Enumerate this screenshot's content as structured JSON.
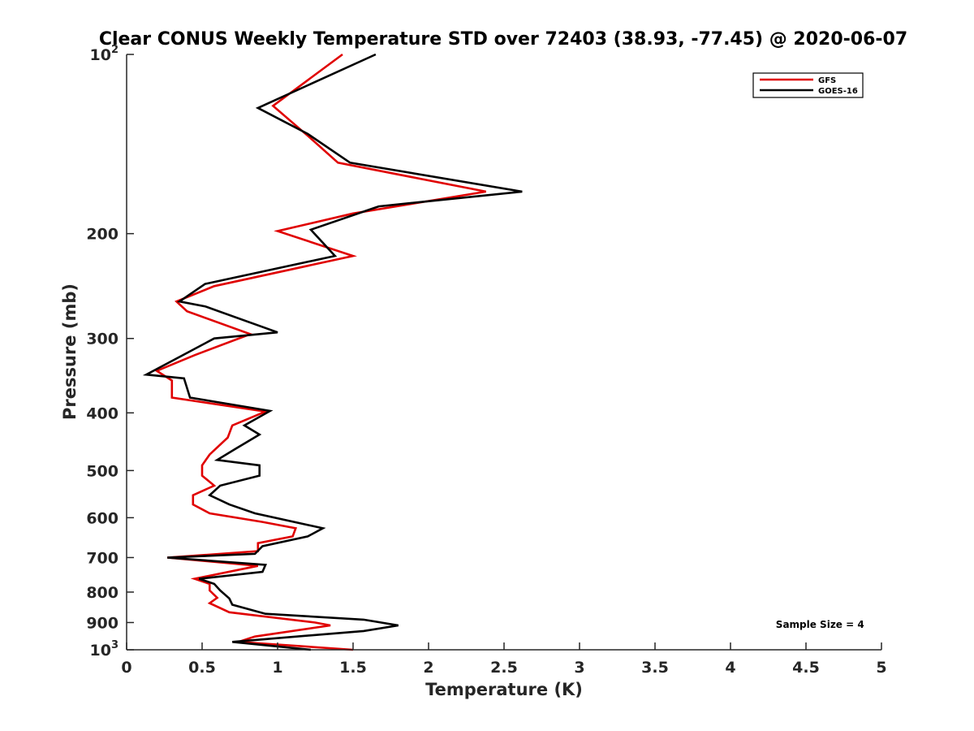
{
  "chart_data": {
    "type": "line",
    "title": "Clear CONUS Weekly Temperature STD over 72403 (38.93, -77.45) @ 2020-06-07",
    "xlabel": "Temperature (K)",
    "ylabel": "Pressure (mb)",
    "xlim": [
      0,
      5
    ],
    "ylim": [
      100,
      1000
    ],
    "yscale": "log",
    "yreversed": true,
    "grid": false,
    "legend_position": "top-right",
    "x_ticks": [
      0,
      0.5,
      1,
      1.5,
      2,
      2.5,
      3,
      3.5,
      4,
      4.5,
      5
    ],
    "x_tick_labels": [
      "0",
      "0.5",
      "1",
      "1.5",
      "2",
      "2.5",
      "3",
      "3.5",
      "4",
      "4.5",
      "5"
    ],
    "y_ticks": [
      {
        "value": 100,
        "label": "10",
        "sup": "2"
      },
      {
        "value": 200,
        "label": "200",
        "sup": ""
      },
      {
        "value": 300,
        "label": "300",
        "sup": ""
      },
      {
        "value": 400,
        "label": "400",
        "sup": ""
      },
      {
        "value": 500,
        "label": "500",
        "sup": ""
      },
      {
        "value": 600,
        "label": "600",
        "sup": ""
      },
      {
        "value": 700,
        "label": "700",
        "sup": ""
      },
      {
        "value": 800,
        "label": "800",
        "sup": ""
      },
      {
        "value": 900,
        "label": "900",
        "sup": ""
      },
      {
        "value": 1000,
        "label": "10",
        "sup": "3"
      }
    ],
    "series": [
      {
        "name": "GFS",
        "color": "#e00000",
        "x": [
          1.43,
          0.97,
          1.2,
          1.4,
          2.38,
          1.5,
          1.0,
          1.5,
          0.58,
          0.33,
          0.4,
          0.82,
          0.45,
          0.2,
          0.3,
          0.3,
          0.92,
          0.7,
          0.67,
          0.55,
          0.5,
          0.5,
          0.58,
          0.44,
          0.44,
          0.55,
          0.9,
          1.12,
          1.1,
          0.87,
          0.87,
          0.27,
          0.87,
          0.45,
          0.55,
          0.55,
          0.6,
          0.55,
          0.68,
          1.25,
          1.35,
          0.85,
          0.74,
          1.5
        ],
        "y": [
          100,
          122,
          137,
          152,
          170,
          185,
          198,
          218,
          245,
          260,
          270,
          295,
          320,
          340,
          353,
          377,
          398,
          420,
          440,
          470,
          490,
          510,
          530,
          550,
          570,
          590,
          610,
          625,
          645,
          662,
          683,
          700,
          723,
          760,
          775,
          795,
          818,
          835,
          865,
          900,
          910,
          950,
          970,
          1000
        ]
      },
      {
        "name": "GOES-16",
        "color": "#000000",
        "x": [
          1.65,
          0.87,
          1.2,
          1.48,
          2.62,
          1.67,
          1.22,
          1.38,
          0.52,
          0.35,
          0.52,
          1.0,
          0.58,
          0.13,
          0.38,
          0.42,
          0.95,
          0.78,
          0.88,
          0.72,
          0.6,
          0.88,
          0.88,
          0.62,
          0.55,
          0.68,
          0.85,
          1.3,
          1.2,
          0.9,
          0.85,
          0.27,
          0.92,
          0.9,
          0.48,
          0.58,
          0.62,
          0.68,
          0.7,
          0.92,
          1.57,
          1.8,
          1.57,
          0.7,
          1.22
        ],
        "y": [
          100,
          123,
          136,
          152,
          170,
          180,
          197,
          218,
          243,
          260,
          265,
          293,
          300,
          345,
          350,
          377,
          397,
          420,
          435,
          460,
          480,
          490,
          510,
          530,
          550,
          570,
          590,
          625,
          645,
          670,
          690,
          700,
          720,
          740,
          760,
          775,
          795,
          820,
          840,
          870,
          890,
          910,
          930,
          970,
          1000
        ]
      }
    ],
    "annotations": [
      {
        "text": "Sample Size = 4",
        "x": 4.3,
        "y": 918
      }
    ]
  }
}
